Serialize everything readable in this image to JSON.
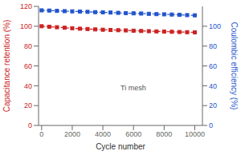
{
  "chart_data": {
    "type": "line",
    "xlabel": "Cycle number",
    "ylabel": "Capacitance retention (%)",
    "y2label": "Coulombic efficiency (%)",
    "x": [
      0,
      500,
      1000,
      1500,
      2000,
      2500,
      3000,
      3500,
      4000,
      4500,
      5000,
      5500,
      6000,
      6500,
      7000,
      7500,
      8000,
      8500,
      9000,
      9500,
      10000
    ],
    "series": [
      {
        "color": "#cc2222",
        "marker": "square",
        "line_style": "dashed",
        "values": [
          100,
          99.5,
          99.0,
          98.5,
          98.0,
          97.5,
          97.2,
          96.8,
          96.5,
          96.2,
          96.0,
          95.8,
          95.5,
          95.2,
          95.0,
          94.8,
          94.6,
          94.4,
          94.2,
          94.0,
          93.8
        ]
      },
      {
        "color": "#2255cc",
        "marker": "square",
        "line_style": "dashed",
        "axis": "y2",
        "values": [
          116,
          115.8,
          115.5,
          115.2,
          115.0,
          114.8,
          114.5,
          114.2,
          114.0,
          113.8,
          113.5,
          113.2,
          113.0,
          112.8,
          112.5,
          112.2,
          112.0,
          111.8,
          111.5,
          111.2,
          111.0
        ]
      }
    ],
    "xlim": [
      -200,
      10500
    ],
    "xticks": [
      0,
      2000,
      4000,
      6000,
      8000,
      10000
    ],
    "ylim": [
      0,
      120
    ],
    "yticks": [
      0,
      20,
      40,
      60,
      80,
      100,
      120
    ],
    "y2lim": [
      0,
      120
    ],
    "y2ticks": [
      0,
      20,
      40,
      60,
      80,
      100
    ],
    "annotations": [
      "Ti mesh"
    ],
    "grid": false
  }
}
